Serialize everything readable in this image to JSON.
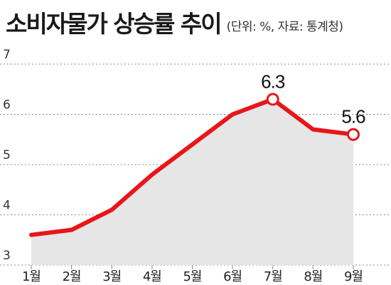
{
  "header": {
    "title": "소비자물가 상승률 추이",
    "subtitle": "(단위: %, 자료: 통계청)"
  },
  "chart_data": {
    "type": "line",
    "title": "소비자물가 상승률 추이",
    "subtitle": "(단위: %, 자료: 통계청)",
    "categories": [
      "1월",
      "2월",
      "3월",
      "4월",
      "5월",
      "6월",
      "7월",
      "8월",
      "9월"
    ],
    "series": [
      {
        "values": [
          3.6,
          3.7,
          4.1,
          4.8,
          5.4,
          6.0,
          6.3,
          5.7,
          5.6
        ]
      }
    ],
    "data_labels": [
      {
        "index": 6,
        "text": "6.3"
      },
      {
        "index": 8,
        "text": "5.6"
      }
    ],
    "ylim": [
      3,
      7
    ],
    "yticks": [
      "3",
      "4",
      "5",
      "6",
      "7"
    ],
    "grid": true,
    "area_fill": true,
    "colors": {
      "line": "#e8161b",
      "area": "#e6e6e6",
      "grid": "#8a8a8a",
      "marker_fill": "#ffffff"
    }
  }
}
